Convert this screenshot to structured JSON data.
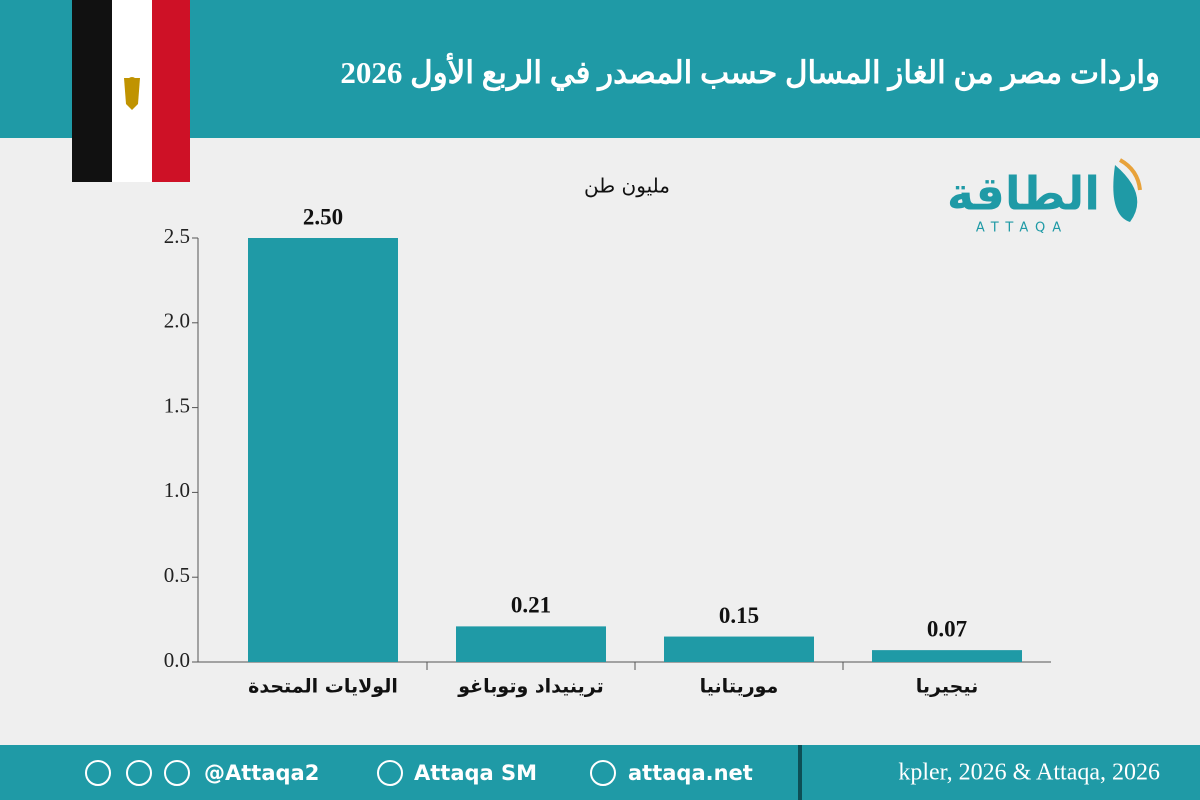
{
  "chart_data": {
    "type": "bar",
    "title": "واردات مصر من الغاز المسال حسب المصدر في الربع الأول 2026",
    "y_label": "مليون طن",
    "categories": [
      "الولايات المتحدة",
      "ترينيداد وتوباغو",
      "موريتانيا",
      "نيجيريا"
    ],
    "values": [
      2.5,
      0.21,
      0.15,
      0.07
    ],
    "value_labels": [
      "2.50",
      "0.21",
      "0.15",
      "0.07"
    ],
    "color": "#1f9aa6",
    "ylim": [
      0,
      2.5
    ],
    "yticks": [
      {
        "value": 0,
        "label": "0.0"
      },
      0.5,
      {
        "value": 1,
        "label": "1.0"
      },
      1.5,
      {
        "value": 2,
        "label": "2.0"
      },
      2.5
    ],
    "grid": false
  },
  "logo": {
    "name": "الطاقة",
    "latin": "ATTAQA"
  },
  "footer": {
    "twitter": "@Attaqa2",
    "youtube": "Attaqa SM",
    "website": "attaqa.net",
    "source": "kpler, 2026 & Attaqa, 2026"
  }
}
